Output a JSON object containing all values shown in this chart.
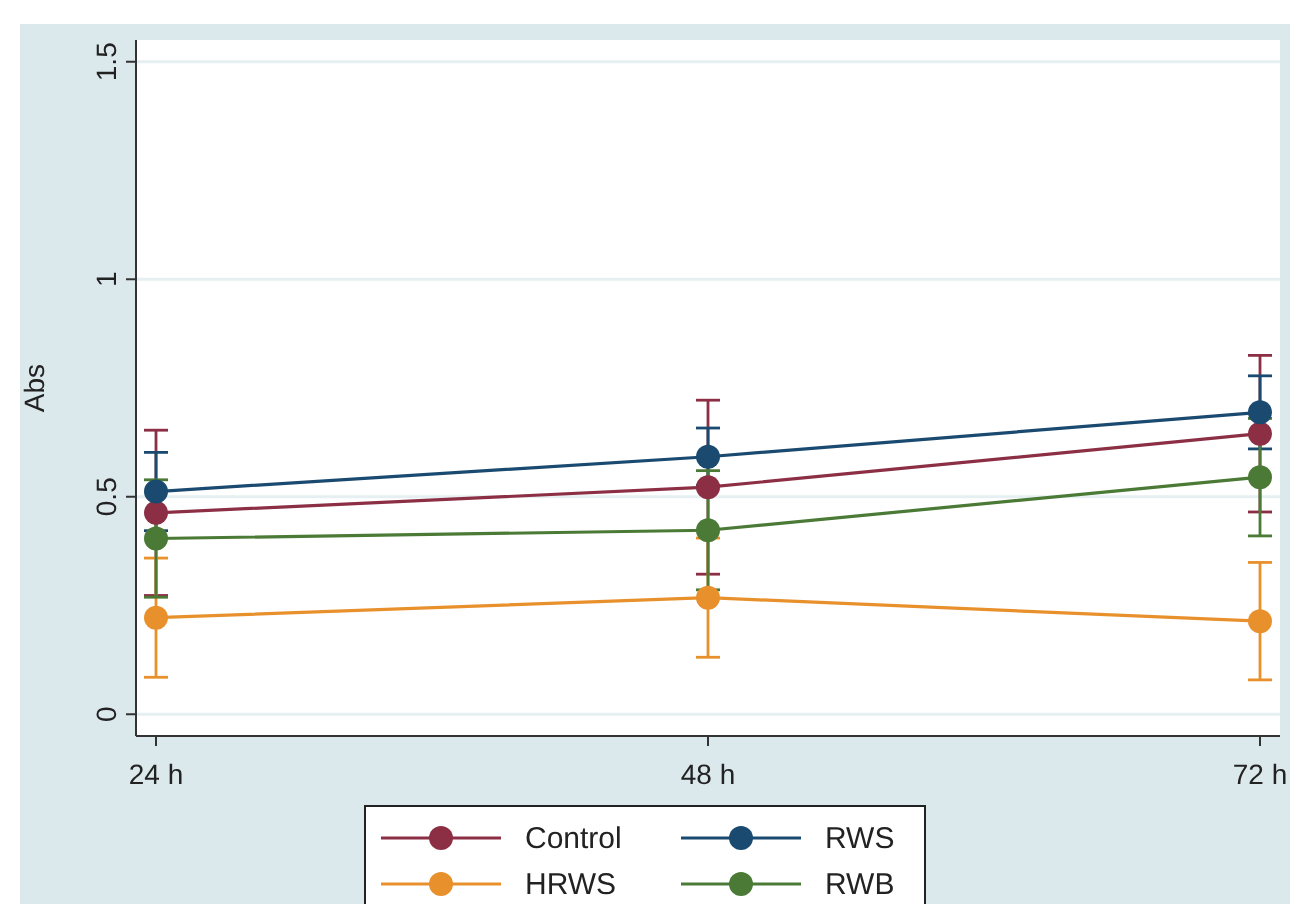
{
  "chart_data": {
    "type": "line",
    "ylabel": "Abs",
    "categories": [
      "24 h",
      "48 h",
      "72 h"
    ],
    "ylim": [
      -0.05,
      1.55
    ],
    "yticks": [
      0,
      0.5,
      1,
      1.5
    ],
    "grid": "y",
    "legend": "bottom",
    "marker": "circle",
    "series": [
      {
        "name": "Control",
        "color": "#8c2f45",
        "values": [
          0.463,
          0.522,
          0.645
        ],
        "errors": [
          0.19,
          0.2,
          0.18
        ]
      },
      {
        "name": "RWS",
        "color": "#1a4a70",
        "values": [
          0.512,
          0.592,
          0.694
        ],
        "errors": [
          0.09,
          0.066,
          0.084
        ]
      },
      {
        "name": "HRWS",
        "color": "#e8912c",
        "values": [
          0.222,
          0.268,
          0.214
        ],
        "errors": [
          0.137,
          0.137,
          0.135
        ]
      },
      {
        "name": "RWB",
        "color": "#4a7a35",
        "values": [
          0.404,
          0.423,
          0.545
        ],
        "errors": [
          0.135,
          0.137,
          0.135
        ]
      }
    ]
  }
}
